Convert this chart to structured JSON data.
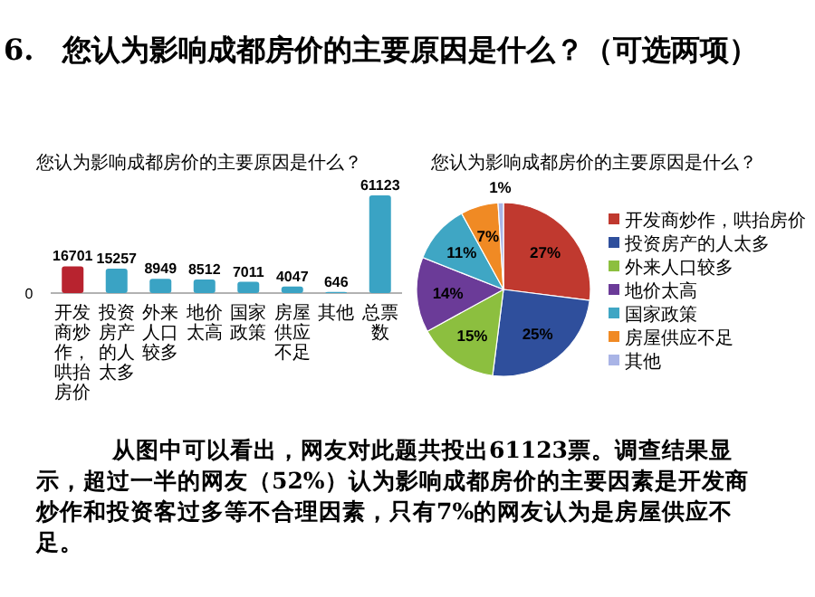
{
  "chart_data": [
    {
      "type": "other",
      "title": "6.　您认为影响成都房价的主要原因是什么？（可选两项）"
    },
    {
      "type": "bar",
      "title": "您认为影响成都房价的主要原因是什么？",
      "categories": [
        "开发商炒作，哄抬房价",
        "投资房产的人太多",
        "外来人口较多",
        "地价太高",
        "国家政策",
        "房屋供应不足",
        "其他",
        "总票数"
      ],
      "values": [
        16701,
        15257,
        8949,
        8512,
        7011,
        4047,
        646,
        61123
      ],
      "colors": [
        "#b8232f",
        "#3aa3c4",
        "#3aa3c4",
        "#3aa3c4",
        "#3aa3c4",
        "#3aa3c4",
        "#3aa3c4",
        "#3aa3c4"
      ],
      "data_labels": true,
      "annotations": [
        "0"
      ]
    },
    {
      "type": "pie",
      "title": "您认为影响成都房价的主要原因是什么？",
      "categories": [
        "开发商炒作，哄抬房价",
        "投资房产的人太多",
        "外来人口较多",
        "地价太高",
        "国家政策",
        "房屋供应不足",
        "其他"
      ],
      "values": [
        27,
        25,
        15,
        14,
        11,
        7,
        1
      ],
      "value_labels": [
        "27%",
        "25%",
        "15%",
        "14%",
        "11%",
        "7%",
        "1%"
      ],
      "colors": [
        "#c0392f",
        "#2f4f9c",
        "#8cbf3f",
        "#6b3b98",
        "#3fa6c4",
        "#f08a24",
        "#a9b4e6"
      ],
      "legend": "right"
    },
    {
      "type": "other",
      "annotations": [
        "从图中可以看出，网友对此题共投出61123票。调查结果显示，超过一半的网友（52%）认为影响成都房价的主要因素是开发商炒作和投资客过多等不合理因素，只有7%的网友认为是房屋供应不足。"
      ]
    }
  ]
}
